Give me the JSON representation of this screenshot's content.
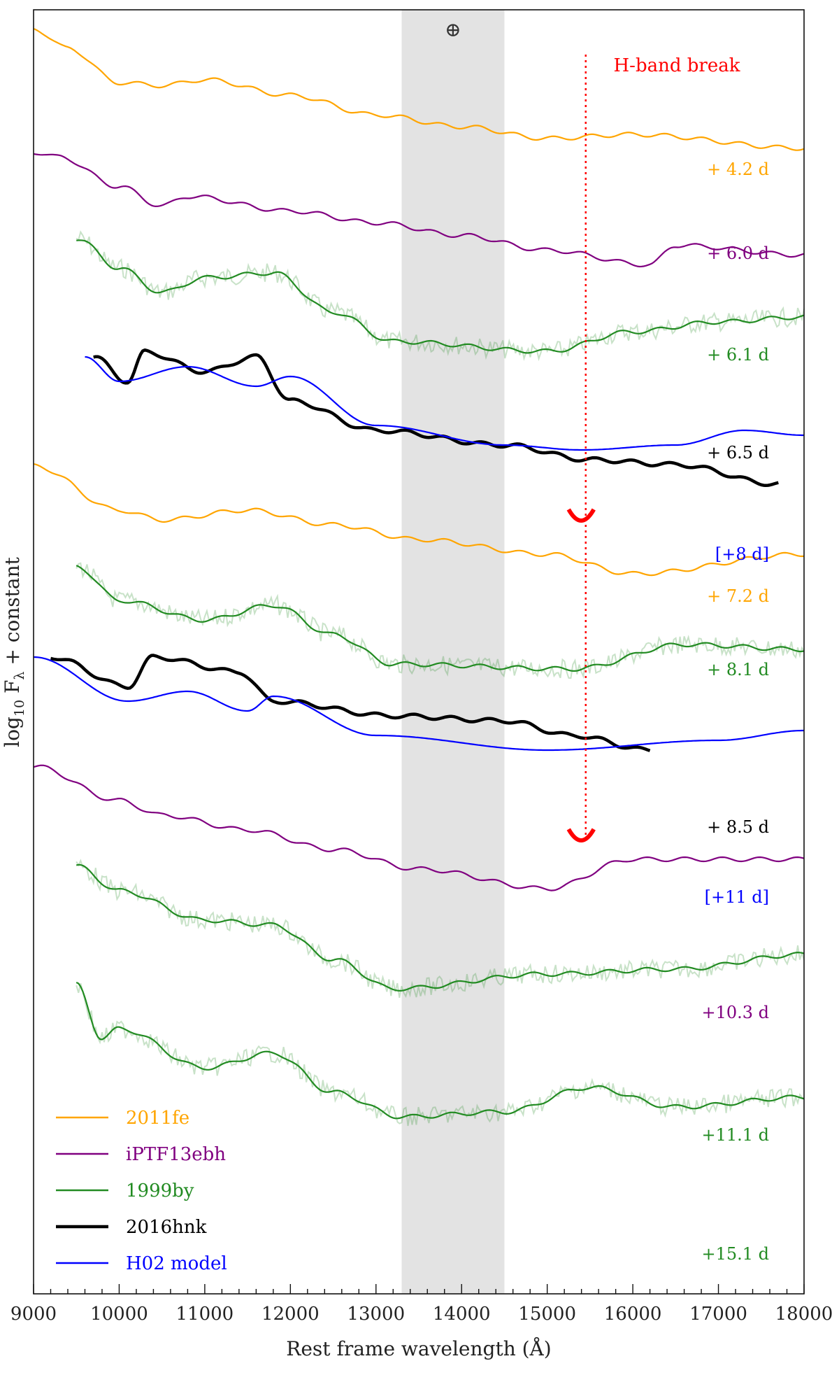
{
  "chart_data": {
    "type": "line",
    "title": "",
    "xlabel": "Rest frame wavelength (Å)",
    "ylabel": "log10 Fλ + constant",
    "ylabel_parts": {
      "prefix": "log",
      "subscript": "10",
      "flux": "F",
      "lambda": "λ",
      "suffix": " + constant"
    },
    "xlim": [
      9000,
      18000
    ],
    "x_ticks": [
      "9000",
      "10000",
      "11000",
      "12000",
      "13000",
      "14000",
      "15000",
      "16000",
      "17000",
      "18000"
    ],
    "telluric_band": {
      "x0": 13300,
      "x1": 14500,
      "symbol": "⊕"
    },
    "h_band_break": {
      "x": 15450,
      "label": "H-band break",
      "color": "#ff0000"
    },
    "legend": [
      {
        "label": "2011fe",
        "color": "#ffa500"
      },
      {
        "label": "iPTF13ebh",
        "color": "#800080"
      },
      {
        "label": "1999by",
        "color": "#228b22"
      },
      {
        "label": "2016hnk",
        "color": "#000000"
      },
      {
        "label": "H02 model",
        "color": "#0000ff"
      }
    ],
    "series": [
      {
        "name": "2011fe",
        "epoch": "+ 4.2 d",
        "color": "#ffa500",
        "y": [
          0.1,
          -0.1,
          -0.45,
          -0.48,
          -0.42,
          -0.58,
          -0.78,
          -0.9,
          -1.02,
          -0.98,
          -1.12
        ],
        "x": [
          9000,
          9400,
          10000,
          10500,
          11000,
          12000,
          13000,
          14000,
          15000,
          16000,
          18000
        ],
        "offset": 0.0
      },
      {
        "name": "iPTF13ebh",
        "epoch": "+ 6.0 d",
        "color": "#800080",
        "y": [
          0.0,
          -0.05,
          -0.35,
          -0.55,
          -0.45,
          -0.6,
          -0.72,
          -0.85,
          -1.0,
          -1.15,
          -0.95,
          -1.05
        ],
        "x": [
          9000,
          9300,
          10000,
          10500,
          10800,
          12000,
          13000,
          14000,
          15000,
          16200,
          16500,
          18000
        ],
        "offset": -1.25
      },
      {
        "name": "1999by",
        "epoch": "+ 6.1 d",
        "color": "#228b22",
        "y": [
          0.0,
          -0.3,
          -0.55,
          -0.4,
          -0.35,
          -0.75,
          -1.05,
          -1.15,
          -0.95,
          -0.85,
          -0.8
        ],
        "x": [
          9500,
          10000,
          10500,
          11000,
          11800,
          12500,
          13200,
          15000,
          16000,
          17000,
          18000
        ],
        "offset": -2.2
      },
      {
        "name": "2016hnk",
        "epoch": "+ 6.5 d",
        "color": "#000000",
        "y": [
          0.0,
          -0.25,
          0.05,
          -0.15,
          0.0,
          -0.45,
          -0.75,
          -0.9,
          -1.05,
          -1.1,
          -1.3
        ],
        "x": [
          9700,
          10100,
          10300,
          11000,
          11600,
          12000,
          13000,
          14500,
          15500,
          16500,
          17700
        ],
        "offset": -3.5
      },
      {
        "name": "H02 model",
        "epoch": "[+8 d]",
        "color": "#0000ff",
        "y": [
          0.0,
          -0.25,
          -0.1,
          -0.3,
          -0.2,
          -0.7,
          -0.9,
          -0.95,
          -0.9,
          -0.75,
          -0.8
        ],
        "x": [
          9600,
          10000,
          10800,
          11600,
          12000,
          13000,
          14500,
          15400,
          16500,
          17300,
          18000
        ],
        "offset": -3.5
      },
      {
        "name": "2011fe",
        "epoch": "+ 7.2 d",
        "color": "#ffa500",
        "y": [
          0.0,
          -0.45,
          -0.55,
          -0.45,
          -0.6,
          -0.75,
          -0.9,
          -1.1,
          -0.9
        ],
        "x": [
          9000,
          10000,
          10500,
          11500,
          12500,
          13500,
          15000,
          16000,
          18000
        ],
        "offset": -4.7
      },
      {
        "name": "1999by",
        "epoch": "+ 8.1 d",
        "color": "#228b22",
        "y": [
          0.0,
          -0.35,
          -0.55,
          -0.4,
          -0.7,
          -1.0,
          -1.05,
          -0.8,
          -0.85
        ],
        "x": [
          9500,
          10000,
          11000,
          11800,
          12500,
          13200,
          15300,
          16600,
          18000
        ],
        "offset": -5.8
      },
      {
        "name": "2016hnk",
        "epoch": "+ 8.5 d",
        "color": "#000000",
        "y": [
          0.0,
          -0.3,
          0.0,
          -0.15,
          -0.45,
          -0.6,
          -0.65,
          -0.8,
          -0.95
        ],
        "x": [
          9200,
          10100,
          10400,
          11400,
          11800,
          13200,
          14500,
          15300,
          16200
        ],
        "offset": -6.8
      },
      {
        "name": "H02 model",
        "epoch": "[+11 d]",
        "color": "#0000ff",
        "y": [
          0.0,
          -0.45,
          -0.35,
          -0.55,
          -0.4,
          -0.8,
          -0.95,
          -0.85,
          -0.75
        ],
        "x": [
          9000,
          10100,
          10800,
          11500,
          11800,
          13000,
          15000,
          17000,
          18000
        ],
        "offset": -6.8
      },
      {
        "name": "iPTF13ebh",
        "epoch": "+10.3 d",
        "color": "#800080",
        "y": [
          0.0,
          -0.35,
          -0.5,
          -0.65,
          -0.85,
          -1.05,
          -1.25,
          -0.95,
          -0.95
        ],
        "x": [
          9000,
          10000,
          10500,
          11500,
          12500,
          13500,
          15000,
          16000,
          18000
        ],
        "offset": -8.0
      },
      {
        "name": "1999by",
        "epoch": "+11.1 d",
        "color": "#228b22",
        "y": [
          0.0,
          -0.25,
          -0.55,
          -0.6,
          -0.95,
          -1.25,
          -1.1,
          -1.05,
          -0.9
        ],
        "x": [
          9500,
          10000,
          11000,
          11800,
          12500,
          13200,
          15000,
          16500,
          18000
        ],
        "offset": -9.1
      },
      {
        "name": "1999by",
        "epoch": "+15.1 d",
        "color": "#228b22",
        "y": [
          0.0,
          -0.55,
          -0.45,
          -0.85,
          -0.7,
          -1.1,
          -1.35,
          -1.3,
          -1.05,
          -1.25,
          -1.15
        ],
        "x": [
          9500,
          9800,
          10000,
          11000,
          11800,
          12500,
          13300,
          14500,
          15500,
          16500,
          18000
        ],
        "offset": -10.4
      }
    ]
  }
}
